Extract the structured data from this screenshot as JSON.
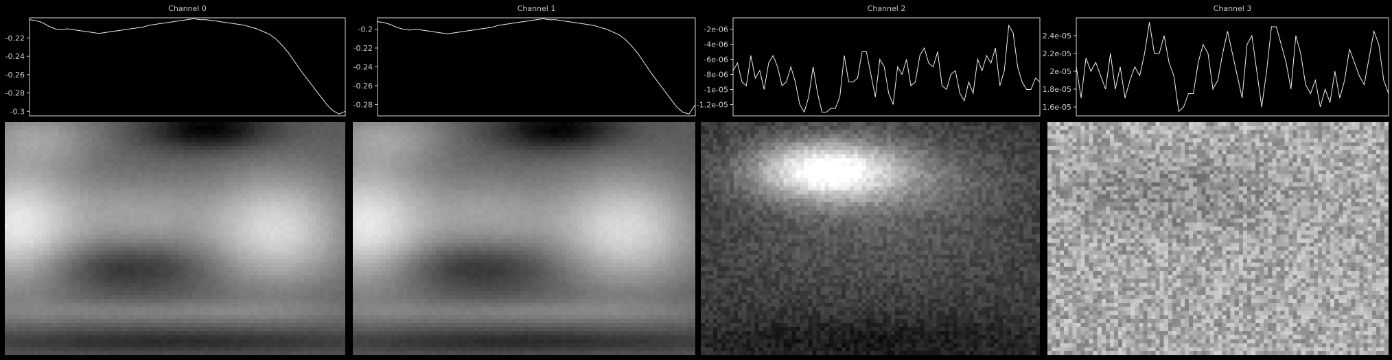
{
  "chart_data": [
    {
      "type": "line",
      "title": "Channel 0",
      "ylim": [
        -0.305,
        -0.198
      ],
      "yticks": [
        -0.22,
        -0.24,
        -0.26,
        -0.28,
        -0.3
      ],
      "ytick_labels": [
        "-0.22",
        "-0.24",
        "-0.26",
        "-0.28",
        "-0.3"
      ],
      "values": [
        -0.2,
        -0.201,
        -0.203,
        -0.207,
        -0.21,
        -0.211,
        -0.21,
        -0.211,
        -0.212,
        -0.213,
        -0.214,
        -0.215,
        -0.214,
        -0.213,
        -0.212,
        -0.211,
        -0.21,
        -0.209,
        -0.208,
        -0.206,
        -0.205,
        -0.204,
        -0.203,
        -0.202,
        -0.201,
        -0.2,
        -0.199,
        -0.2,
        -0.2,
        -0.201,
        -0.202,
        -0.203,
        -0.204,
        -0.205,
        -0.206,
        -0.208,
        -0.21,
        -0.213,
        -0.216,
        -0.221,
        -0.228,
        -0.236,
        -0.246,
        -0.256,
        -0.265,
        -0.274,
        -0.283,
        -0.292,
        -0.299,
        -0.303,
        -0.3
      ]
    },
    {
      "type": "line",
      "title": "Channel 1",
      "ylim": [
        -0.292,
        -0.188
      ],
      "yticks": [
        -0.2,
        -0.22,
        -0.24,
        -0.26,
        -0.28
      ],
      "ytick_labels": [
        "-0.2",
        "-0.22",
        "-0.24",
        "-0.26",
        "-0.28"
      ],
      "values": [
        -0.192,
        -0.193,
        -0.195,
        -0.198,
        -0.2,
        -0.201,
        -0.2,
        -0.201,
        -0.202,
        -0.203,
        -0.204,
        -0.205,
        -0.204,
        -0.203,
        -0.202,
        -0.201,
        -0.2,
        -0.199,
        -0.198,
        -0.196,
        -0.195,
        -0.194,
        -0.193,
        -0.192,
        -0.191,
        -0.19,
        -0.189,
        -0.19,
        -0.19,
        -0.191,
        -0.192,
        -0.193,
        -0.194,
        -0.195,
        -0.196,
        -0.198,
        -0.2,
        -0.203,
        -0.206,
        -0.211,
        -0.218,
        -0.226,
        -0.236,
        -0.246,
        -0.255,
        -0.264,
        -0.273,
        -0.282,
        -0.288,
        -0.29,
        -0.28
      ]
    },
    {
      "type": "line",
      "title": "Channel 2",
      "ylim": [
        -1.35e-05,
        -5e-07
      ],
      "yticks": [
        -2e-06,
        -4e-06,
        -6e-06,
        -8e-06,
        -1e-05,
        -1.2e-05
      ],
      "ytick_labels": [
        "-2e-06",
        "-4e-06",
        "-6e-06",
        "-8e-06",
        "-1e-05",
        "-1.2e-05"
      ],
      "values": [
        -7.5e-06,
        -6.5e-06,
        -9e-06,
        -9.5e-06,
        -5.5e-06,
        -8.5e-06,
        -7.5e-06,
        -1e-05,
        -6.5e-06,
        -5.5e-06,
        -7e-06,
        -9.5e-06,
        -9e-06,
        -7e-06,
        -9e-06,
        -1.2e-05,
        -1.3e-05,
        -1.1e-05,
        -7e-06,
        -1.05e-05,
        -1.3e-05,
        -1.3e-05,
        -1.25e-05,
        -1.25e-05,
        -1.1e-05,
        -5.5e-06,
        -9e-06,
        -9e-06,
        -8.5e-06,
        -5e-06,
        -5e-06,
        -8e-06,
        -1.1e-05,
        -6e-06,
        -7e-06,
        -1.05e-05,
        -1.2e-05,
        -7e-06,
        -8e-06,
        -6e-06,
        -9.5e-06,
        -9e-06,
        -5.5e-06,
        -4.5e-06,
        -6.5e-06,
        -7e-06,
        -5e-06,
        -9.5e-06,
        -1e-05,
        -8e-06,
        -7.5e-06,
        -1.05e-05,
        -1.15e-05,
        -9e-06,
        -1.05e-05,
        -6e-06,
        -7.5e-06,
        -5.5e-06,
        -6.5e-06,
        -4.5e-06,
        -9.5e-06,
        -7.5e-06,
        -1.5e-06,
        -2.5e-06,
        -7e-06,
        -9e-06,
        -1e-05,
        -1e-05,
        -8.5e-06,
        -9e-06
      ]
    },
    {
      "type": "line",
      "title": "Channel 3",
      "ylim": [
        1.5e-05,
        2.6e-05
      ],
      "yticks": [
        2.4e-05,
        2.2e-05,
        2e-05,
        1.8e-05,
        1.6e-05
      ],
      "ytick_labels": [
        "2.4e-05",
        "2.2e-05",
        "2e-05",
        "1.8e-05",
        "1.6e-05"
      ],
      "values": [
        2.05e-05,
        1.7e-05,
        2.15e-05,
        2e-05,
        2.1e-05,
        1.95e-05,
        1.8e-05,
        2.2e-05,
        1.8e-05,
        2.05e-05,
        1.7e-05,
        1.9e-05,
        2.05e-05,
        1.95e-05,
        2.2e-05,
        2.55e-05,
        2.2e-05,
        2.2e-05,
        2.4e-05,
        2.1e-05,
        1.95e-05,
        1.55e-05,
        1.6e-05,
        1.75e-05,
        1.75e-05,
        2.1e-05,
        2.3e-05,
        2.2e-05,
        1.8e-05,
        1.9e-05,
        2.2e-05,
        2.45e-05,
        2.2e-05,
        1.95e-05,
        1.7e-05,
        2.3e-05,
        2.4e-05,
        2e-05,
        1.6e-05,
        2e-05,
        2.5e-05,
        2.5e-05,
        2.3e-05,
        2.1e-05,
        1.8e-05,
        2.4e-05,
        2.2e-05,
        1.85e-05,
        1.75e-05,
        1.9e-05,
        1.6e-05,
        1.8e-05,
        1.65e-05,
        2e-05,
        1.7e-05,
        1.9e-05,
        2.25e-05,
        2.1e-05,
        1.95e-05,
        1.85e-05,
        2.15e-05,
        2.45e-05,
        2.3e-05,
        1.9e-05,
        1.75e-05
      ]
    }
  ],
  "images": [
    {
      "name": "channel-0-heatmap",
      "kind": "smooth-bright-bands"
    },
    {
      "name": "channel-1-heatmap",
      "kind": "smooth-bright-bands"
    },
    {
      "name": "channel-2-heatmap",
      "kind": "bright-top-blob"
    },
    {
      "name": "channel-3-heatmap",
      "kind": "noisy-mid-gray"
    }
  ],
  "colors": {
    "background": "#000000",
    "trace": "#f0f0f0",
    "axes": "#d8d8d8"
  }
}
